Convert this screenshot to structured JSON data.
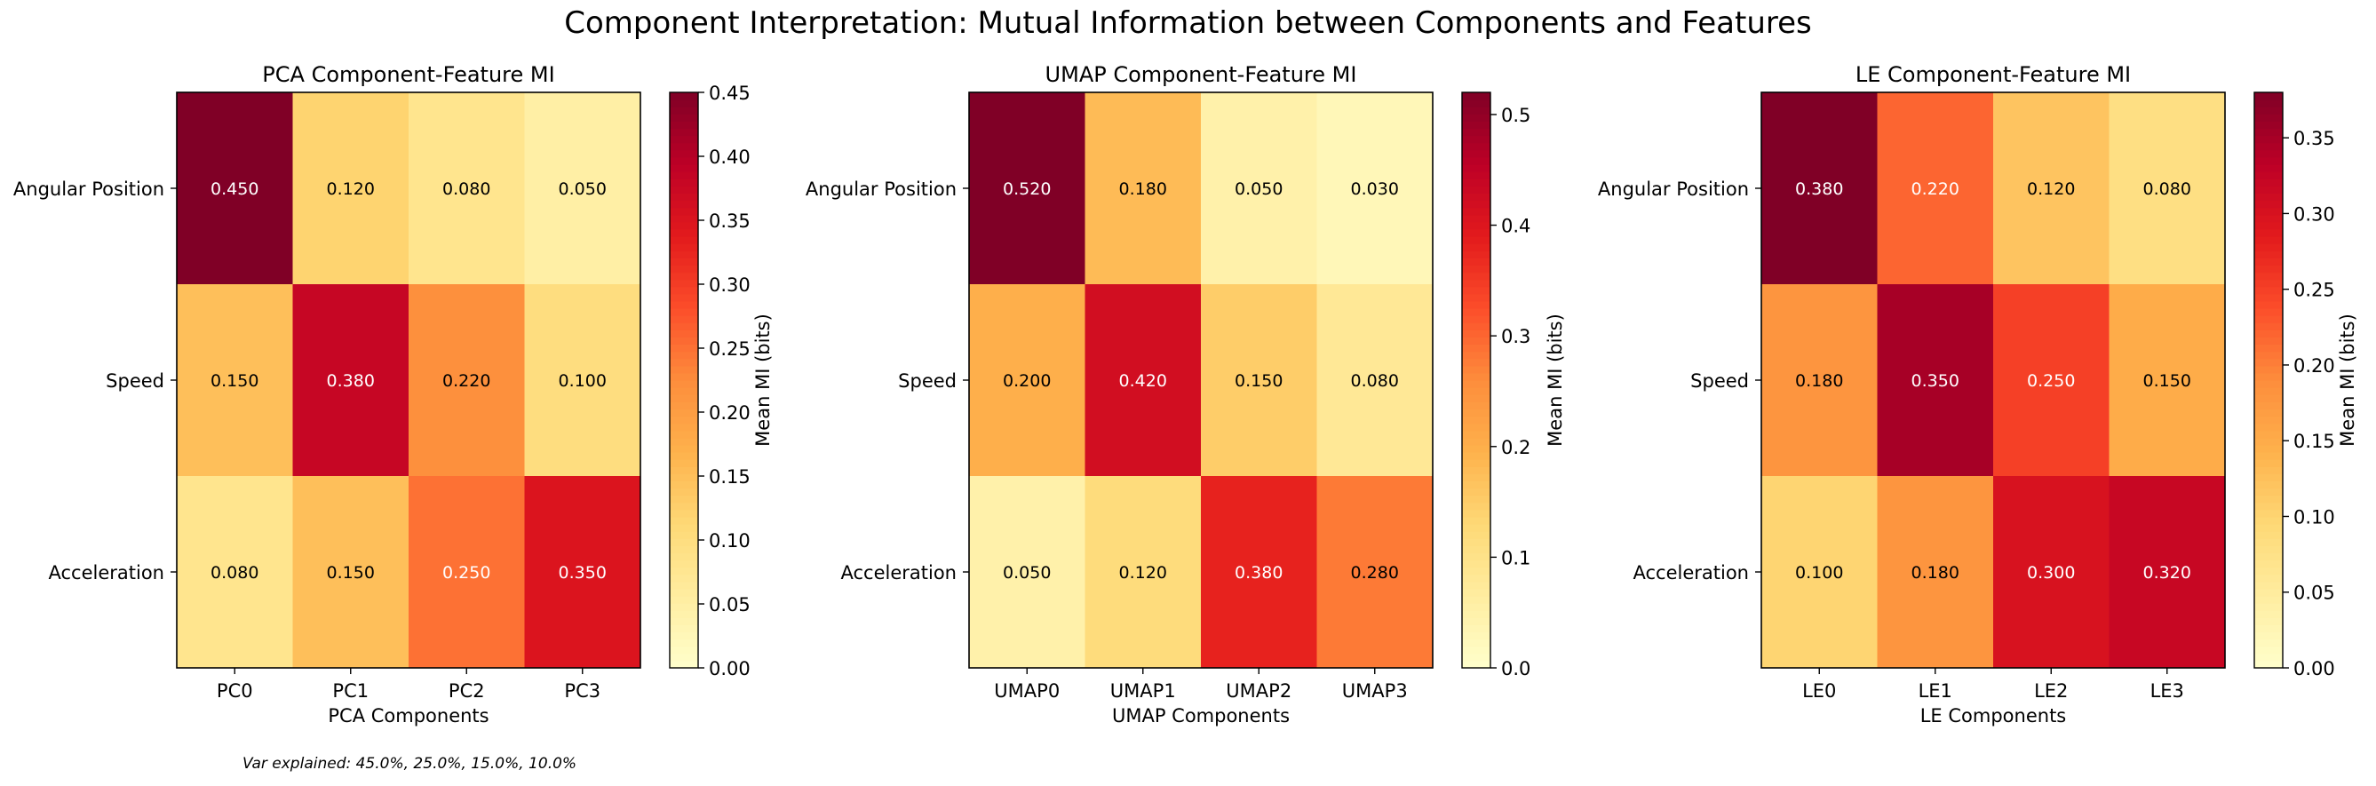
{
  "suptitle": "Component Interpretation: Mutual Information between Components and Features",
  "footnote": "Var explained: 45.0%, 25.0%, 15.0%, 10.0%",
  "chart_data": [
    {
      "type": "heatmap",
      "title": "PCA Component-Feature MI",
      "xlabel": "PCA Components",
      "ylabel": "",
      "categories_x": [
        "PC0",
        "PC1",
        "PC2",
        "PC3"
      ],
      "categories_y": [
        "Angular Position",
        "Speed",
        "Acceleration"
      ],
      "values": [
        [
          0.45,
          0.12,
          0.08,
          0.05
        ],
        [
          0.15,
          0.38,
          0.22,
          0.1
        ],
        [
          0.08,
          0.15,
          0.25,
          0.35
        ]
      ],
      "colormap": "YlOrRd",
      "colorbar": {
        "label": "Mean MI (bits)",
        "range": [
          0,
          0.45
        ],
        "ticks": [
          0,
          0.05,
          0.1,
          0.15,
          0.2,
          0.25,
          0.3,
          0.35,
          0.4,
          0.45
        ],
        "tick_labels": [
          "0.00",
          "0.05",
          "0.10",
          "0.15",
          "0.20",
          "0.25",
          "0.30",
          "0.35",
          "0.40",
          "0.45"
        ]
      }
    },
    {
      "type": "heatmap",
      "title": "UMAP Component-Feature MI",
      "xlabel": "UMAP Components",
      "ylabel": "",
      "categories_x": [
        "UMAP0",
        "UMAP1",
        "UMAP2",
        "UMAP3"
      ],
      "categories_y": [
        "Angular Position",
        "Speed",
        "Acceleration"
      ],
      "values": [
        [
          0.52,
          0.18,
          0.05,
          0.03
        ],
        [
          0.2,
          0.42,
          0.15,
          0.08
        ],
        [
          0.05,
          0.12,
          0.38,
          0.28
        ]
      ],
      "colormap": "YlOrRd",
      "colorbar": {
        "label": "Mean MI (bits)",
        "range": [
          0,
          0.52
        ],
        "ticks": [
          0,
          0.1,
          0.2,
          0.3,
          0.4,
          0.5
        ],
        "tick_labels": [
          "0.0",
          "0.1",
          "0.2",
          "0.3",
          "0.4",
          "0.5"
        ]
      }
    },
    {
      "type": "heatmap",
      "title": "LE Component-Feature MI",
      "xlabel": "LE Components",
      "ylabel": "",
      "categories_x": [
        "LE0",
        "LE1",
        "LE2",
        "LE3"
      ],
      "categories_y": [
        "Angular Position",
        "Speed",
        "Acceleration"
      ],
      "values": [
        [
          0.38,
          0.22,
          0.12,
          0.08
        ],
        [
          0.18,
          0.35,
          0.25,
          0.15
        ],
        [
          0.1,
          0.18,
          0.3,
          0.32
        ]
      ],
      "colormap": "YlOrRd",
      "colorbar": {
        "label": "Mean MI (bits)",
        "range": [
          0,
          0.38
        ],
        "ticks": [
          0,
          0.05,
          0.1,
          0.15,
          0.2,
          0.25,
          0.3,
          0.35
        ],
        "tick_labels": [
          "0.00",
          "0.05",
          "0.10",
          "0.15",
          "0.20",
          "0.25",
          "0.30",
          "0.35"
        ]
      }
    }
  ]
}
